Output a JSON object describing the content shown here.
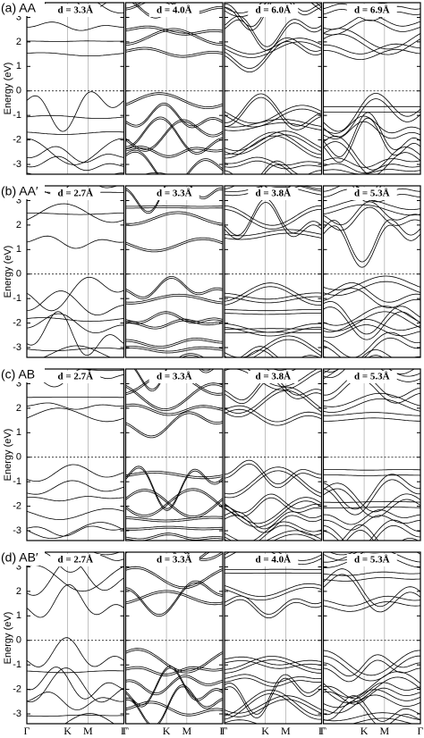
{
  "rows": [
    {
      "label": "(a) AA",
      "panels": [
        "d = 3.3Å",
        "d = 4.0Å",
        "d = 6.0Å",
        "d = 6.9Å"
      ]
    },
    {
      "label": "(b) AA′",
      "panels": [
        "d = 2.7Å",
        "d = 3.3Å",
        "d = 3.8Å",
        "d = 5.3Å"
      ]
    },
    {
      "label": "(c) AB",
      "panels": [
        "d = 2.7Å",
        "d = 3.3Å",
        "d = 3.8Å",
        "d = 5.3Å"
      ]
    },
    {
      "label": "(d) AB′",
      "panels": [
        "d = 2.7Å",
        "d = 3.3Å",
        "d = 4.0Å",
        "d = 5.3Å"
      ]
    }
  ],
  "yaxis": {
    "label": "Energy (eV)",
    "ylim": [
      -3.4,
      3.6
    ],
    "yticks": [
      -3,
      -2,
      -1,
      0,
      1,
      2,
      3
    ]
  },
  "fermi_level": 0,
  "kpath": [
    "Γ",
    "K",
    "M",
    "Γ"
  ]
}
